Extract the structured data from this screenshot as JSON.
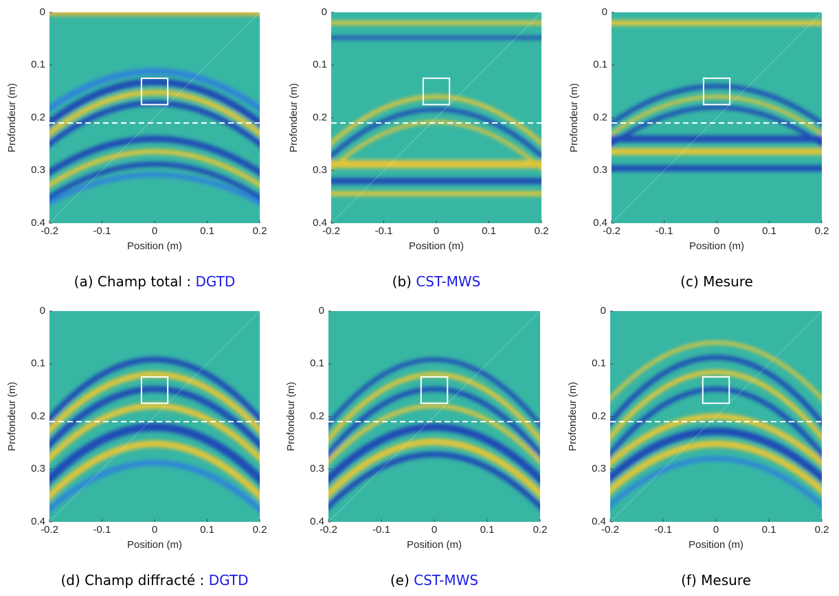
{
  "chart_data": [
    {
      "type": "heatmap",
      "caption": "(a) Champ total :",
      "caption_highlight": "DGTD",
      "xlabel": "Position (m)",
      "ylabel": "Profondeur (m)",
      "xlim": [
        -0.2,
        0.2
      ],
      "ylim": [
        0,
        0.4
      ],
      "y_reversed": true,
      "xticks": [
        -0.2,
        -0.1,
        0,
        0.1,
        0.2
      ],
      "yticks": [
        0,
        0.1,
        0.2,
        0.3,
        0.4
      ],
      "interface_depth": 0.21,
      "target_box": [
        -0.025,
        0.025,
        0.125,
        0.175
      ]
    },
    {
      "type": "heatmap",
      "caption": "(b)",
      "caption_highlight": "CST-MWS",
      "xlabel": "Position (m)",
      "ylabel": "Profondeur (m)",
      "xlim": [
        -0.2,
        0.2
      ],
      "ylim": [
        0,
        0.4
      ],
      "y_reversed": true,
      "xticks": [
        -0.2,
        -0.1,
        0,
        0.1,
        0.2
      ],
      "yticks": [
        0,
        0.1,
        0.2,
        0.3,
        0.4
      ],
      "interface_depth": 0.21,
      "target_box": [
        -0.025,
        0.025,
        0.125,
        0.175
      ]
    },
    {
      "type": "heatmap",
      "caption": "(c) Mesure",
      "xlabel": "Position (m)",
      "ylabel": "Profondeur (m)",
      "xlim": [
        -0.2,
        0.2
      ],
      "ylim": [
        0,
        0.4
      ],
      "y_reversed": true,
      "xticks": [
        -0.2,
        -0.1,
        0,
        0.1,
        0.2
      ],
      "yticks": [
        0,
        0.1,
        0.2,
        0.3,
        0.4
      ],
      "interface_depth": 0.21,
      "target_box": [
        -0.025,
        0.025,
        0.125,
        0.175
      ]
    },
    {
      "type": "heatmap",
      "caption": "(d) Champ diffracté :",
      "caption_highlight": "DGTD",
      "xlabel": "Position (m)",
      "ylabel": "Profondeur (m)",
      "xlim": [
        -0.2,
        0.2
      ],
      "ylim": [
        0,
        0.4
      ],
      "y_reversed": true,
      "xticks": [
        -0.2,
        -0.1,
        0,
        0.1,
        0.2
      ],
      "yticks": [
        0,
        0.1,
        0.2,
        0.3,
        0.4
      ],
      "interface_depth": 0.21,
      "target_box": [
        -0.025,
        0.025,
        0.125,
        0.175
      ]
    },
    {
      "type": "heatmap",
      "caption": "(e)",
      "caption_highlight": "CST-MWS",
      "xlabel": "Position (m)",
      "ylabel": "Profondeur (m)",
      "xlim": [
        -0.2,
        0.2
      ],
      "ylim": [
        0,
        0.4
      ],
      "y_reversed": true,
      "xticks": [
        -0.2,
        -0.1,
        0,
        0.1,
        0.2
      ],
      "yticks": [
        0,
        0.1,
        0.2,
        0.3,
        0.4
      ],
      "interface_depth": 0.21,
      "target_box": [
        -0.025,
        0.025,
        0.125,
        0.175
      ]
    },
    {
      "type": "heatmap",
      "caption": "(f) Mesure",
      "xlabel": "Position (m)",
      "ylabel": "Profondeur (m)",
      "xlim": [
        -0.2,
        0.2
      ],
      "ylim": [
        0,
        0.4
      ],
      "y_reversed": true,
      "xticks": [
        -0.2,
        -0.1,
        0,
        0.1,
        0.2
      ],
      "yticks": [
        0,
        0.1,
        0.2,
        0.3,
        0.4
      ],
      "interface_depth": 0.21,
      "target_box": [
        -0.025,
        0.025,
        0.125,
        0.175
      ]
    }
  ]
}
